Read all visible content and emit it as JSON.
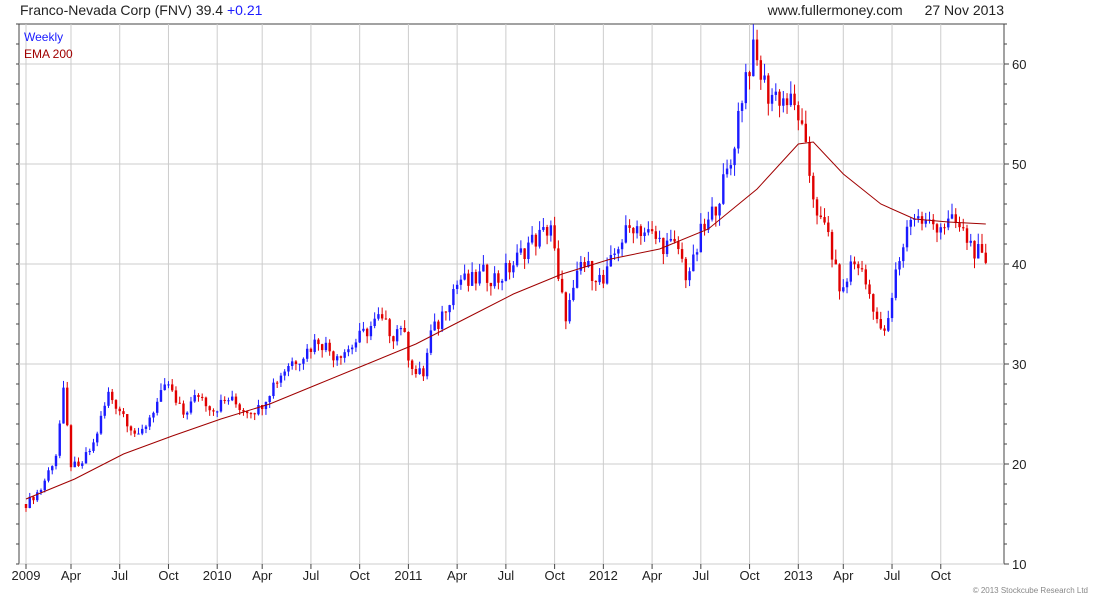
{
  "header": {
    "title": "Franco-Nevada Corp (FNV)",
    "price": "39.4",
    "change": "+0.21",
    "site": "www.fullermoney.com",
    "date": "27 Nov 2013"
  },
  "legend": {
    "period": "Weekly",
    "ema": "EMA 200"
  },
  "colors": {
    "up": "#1a1aff",
    "down": "#e00000",
    "ema": "#a00000",
    "grid": "#cccccc",
    "axis": "#444444"
  },
  "copyright": "© 2013 Stockcube Research Ltd",
  "chart_data": {
    "type": "line",
    "title": "Franco-Nevada Corp (FNV)",
    "x_ticks": [
      {
        "label": "2009",
        "week": 0
      },
      {
        "label": "Apr",
        "week": 12
      },
      {
        "label": "Jul",
        "week": 25
      },
      {
        "label": "Oct",
        "week": 38
      },
      {
        "label": "2010",
        "week": 51
      },
      {
        "label": "Apr",
        "week": 63
      },
      {
        "label": "Jul",
        "week": 76
      },
      {
        "label": "Oct",
        "week": 89
      },
      {
        "label": "2011",
        "week": 102
      },
      {
        "label": "Apr",
        "week": 115
      },
      {
        "label": "Jul",
        "week": 128
      },
      {
        "label": "Oct",
        "week": 141
      },
      {
        "label": "2012",
        "week": 154
      },
      {
        "label": "Apr",
        "week": 167
      },
      {
        "label": "Jul",
        "week": 180
      },
      {
        "label": "Oct",
        "week": 193
      },
      {
        "label": "2013",
        "week": 206
      },
      {
        "label": "Apr",
        "week": 218
      },
      {
        "label": "Jul",
        "week": 231
      },
      {
        "label": "Oct",
        "week": 244
      }
    ],
    "y_ticks": [
      10,
      20,
      30,
      40,
      50,
      60
    ],
    "ylim": [
      10,
      64
    ],
    "x_range_weeks": [
      0,
      259
    ],
    "series": [
      {
        "name": "Weekly",
        "values": [
          [
            0,
            16
          ],
          [
            4,
            17.5
          ],
          [
            8,
            21
          ],
          [
            10,
            27
          ],
          [
            12,
            20
          ],
          [
            14,
            19.5
          ],
          [
            18,
            22
          ],
          [
            22,
            27
          ],
          [
            24,
            26
          ],
          [
            26,
            25
          ],
          [
            30,
            22.5
          ],
          [
            34,
            25.5
          ],
          [
            38,
            28
          ],
          [
            40,
            26
          ],
          [
            42,
            25
          ],
          [
            46,
            27
          ],
          [
            50,
            25.5
          ],
          [
            54,
            26.5
          ],
          [
            58,
            25.5
          ],
          [
            62,
            25.5
          ],
          [
            66,
            28
          ],
          [
            70,
            30
          ],
          [
            74,
            31
          ],
          [
            78,
            32.5
          ],
          [
            82,
            31
          ],
          [
            86,
            31.5
          ],
          [
            90,
            33
          ],
          [
            94,
            34.5
          ],
          [
            98,
            33
          ],
          [
            100,
            34
          ],
          [
            102,
            31
          ],
          [
            104,
            29
          ],
          [
            106,
            29
          ],
          [
            108,
            33
          ],
          [
            110,
            34
          ],
          [
            112,
            36
          ],
          [
            114,
            37.5
          ],
          [
            116,
            38.5
          ],
          [
            118,
            38
          ],
          [
            122,
            39
          ],
          [
            126,
            38.5
          ],
          [
            130,
            40
          ],
          [
            134,
            42
          ],
          [
            138,
            43
          ],
          [
            140,
            44
          ],
          [
            142,
            38
          ],
          [
            144,
            35
          ],
          [
            146,
            37
          ],
          [
            148,
            40
          ],
          [
            152,
            39
          ],
          [
            154,
            38
          ],
          [
            156,
            40
          ],
          [
            158,
            42
          ],
          [
            162,
            44
          ],
          [
            166,
            43
          ],
          [
            170,
            42
          ],
          [
            174,
            41.5
          ],
          [
            176,
            39
          ],
          [
            178,
            40
          ],
          [
            180,
            43
          ],
          [
            182,
            44
          ],
          [
            184,
            46
          ],
          [
            186,
            48
          ],
          [
            188,
            50
          ],
          [
            190,
            55
          ],
          [
            192,
            59
          ],
          [
            194,
            61
          ],
          [
            196,
            59
          ],
          [
            198,
            57
          ],
          [
            200,
            57
          ],
          [
            204,
            56
          ],
          [
            206,
            55
          ],
          [
            208,
            51
          ],
          [
            210,
            47
          ],
          [
            212,
            44
          ],
          [
            214,
            43
          ],
          [
            216,
            39
          ],
          [
            218,
            37
          ],
          [
            220,
            40
          ],
          [
            222,
            40
          ],
          [
            224,
            38
          ],
          [
            226,
            36
          ],
          [
            228,
            33
          ],
          [
            230,
            34
          ],
          [
            232,
            39
          ],
          [
            234,
            42
          ],
          [
            236,
            45
          ],
          [
            240,
            44
          ],
          [
            244,
            44
          ],
          [
            248,
            44
          ],
          [
            252,
            42
          ],
          [
            254,
            41
          ],
          [
            256,
            39.4
          ]
        ]
      },
      {
        "name": "EMA 200",
        "values": [
          [
            0,
            16.5
          ],
          [
            13,
            18.5
          ],
          [
            26,
            21
          ],
          [
            39,
            22.8
          ],
          [
            52,
            24.5
          ],
          [
            65,
            26
          ],
          [
            78,
            28
          ],
          [
            91,
            30
          ],
          [
            104,
            32
          ],
          [
            117,
            34.5
          ],
          [
            130,
            37
          ],
          [
            143,
            39
          ],
          [
            156,
            40.5
          ],
          [
            169,
            41.5
          ],
          [
            182,
            43.5
          ],
          [
            195,
            47.5
          ],
          [
            206,
            52
          ],
          [
            210,
            52.2
          ],
          [
            218,
            49
          ],
          [
            228,
            46
          ],
          [
            237,
            44.5
          ],
          [
            246,
            44.2
          ],
          [
            256,
            44
          ]
        ]
      }
    ]
  }
}
